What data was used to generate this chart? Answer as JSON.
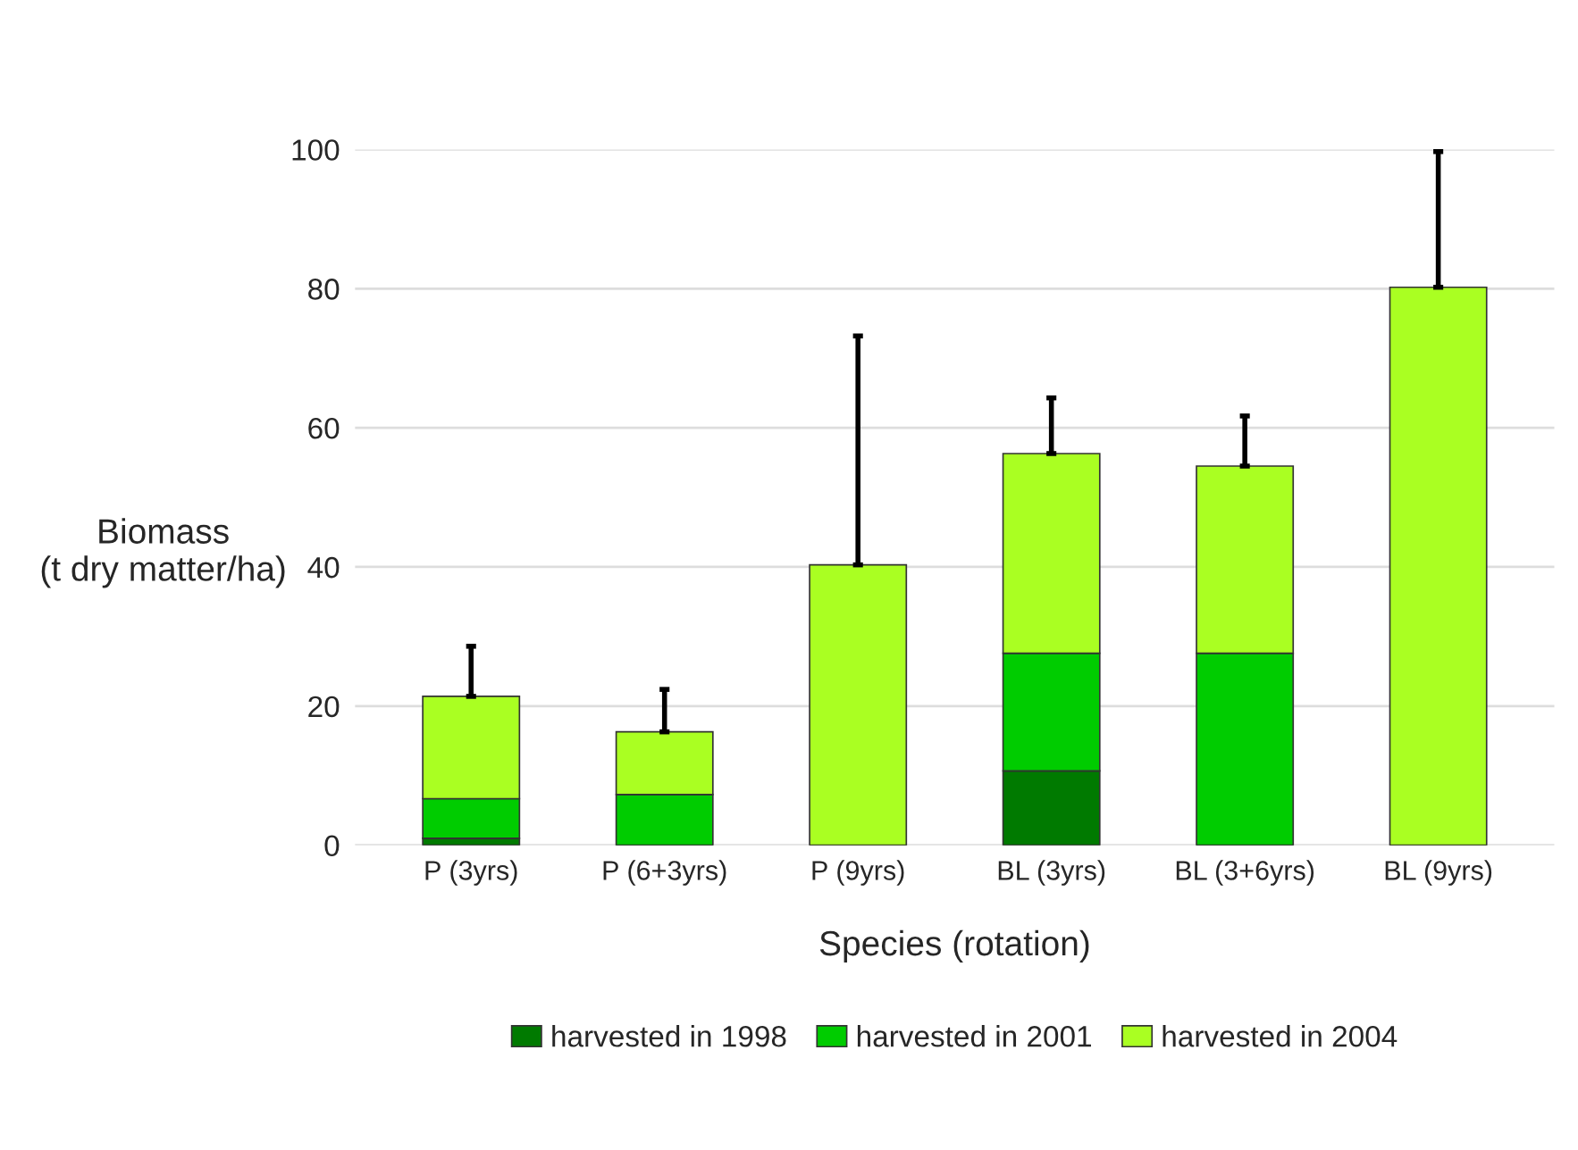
{
  "chart_data": {
    "type": "bar",
    "stacked": true,
    "categories": [
      "P (3yrs)",
      "P (6+3yrs)",
      "P (9yrs)",
      "BL (3yrs)",
      "BL (3+6yrs)",
      "BL (9yrs)"
    ],
    "xlabel": "Species (rotation)",
    "ylabel": "Biomass\n(t dry matter/ha)",
    "series": [
      {
        "name": "harvested in 1998",
        "color": "#007a00",
        "values": [
          1,
          0,
          0,
          10.7,
          0,
          0
        ]
      },
      {
        "name": "harvested in 2001",
        "color": "#00cc00",
        "values": [
          5.7,
          7.3,
          0,
          16.9,
          27.6,
          0
        ]
      },
      {
        "name": "harvested in 2004",
        "color": "#aaff22",
        "values": [
          14.7,
          9,
          40.3,
          28.7,
          26.9,
          80.2
        ],
        "errors": [
          [
            21.4,
            28.6
          ],
          [
            16.3,
            22.4
          ],
          [
            40.3,
            73.2
          ],
          [
            56.3,
            64.3
          ],
          [
            54.5,
            61.7
          ],
          [
            80.2,
            99.7
          ]
        ]
      }
    ],
    "ylim": [
      0,
      100
    ],
    "yticks": [
      0,
      20,
      40,
      60,
      80,
      100
    ],
    "grid": "y",
    "legend": "bottom"
  }
}
